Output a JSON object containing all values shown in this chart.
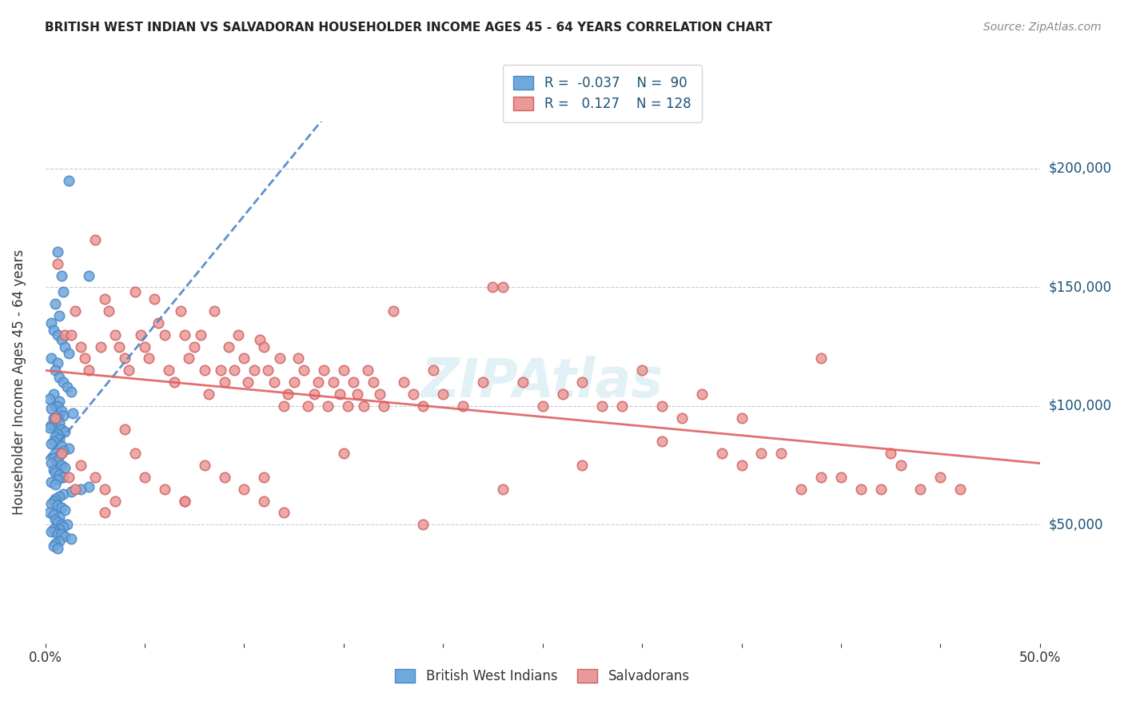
{
  "title": "BRITISH WEST INDIAN VS SALVADORAN HOUSEHOLDER INCOME AGES 45 - 64 YEARS CORRELATION CHART",
  "source": "Source: ZipAtlas.com",
  "xlabel_bottom": "",
  "ylabel": "Householder Income Ages 45 - 64 years",
  "xlim": [
    0.0,
    0.5
  ],
  "ylim": [
    0,
    220000
  ],
  "xticks": [
    0.0,
    0.05,
    0.1,
    0.15,
    0.2,
    0.25,
    0.3,
    0.35,
    0.4,
    0.45,
    0.5
  ],
  "xticklabels": [
    "0.0%",
    "",
    "",
    "",
    "",
    "",
    "",
    "",
    "",
    "",
    "50.0%"
  ],
  "ytick_positions": [
    50000,
    100000,
    150000,
    200000
  ],
  "ytick_labels": [
    "$50,000",
    "$100,000",
    "$150,000",
    "$200,000"
  ],
  "legend_labels": [
    "British West Indians",
    "Salvadorans"
  ],
  "legend_R_blue": "R = -0.037",
  "legend_N_blue": "N =  90",
  "legend_R_pink": "R =  0.127",
  "legend_N_pink": "N = 128",
  "color_blue": "#6fa8dc",
  "color_pink": "#ea9999",
  "color_blue_line": "#4a86c8",
  "color_pink_line": "#e06060",
  "watermark": "ZIPAtlas",
  "blue_R": -0.037,
  "blue_N": 90,
  "pink_R": 0.127,
  "pink_N": 128,
  "blue_x": [
    0.006,
    0.012,
    0.022,
    0.008,
    0.009,
    0.005,
    0.007,
    0.003,
    0.004,
    0.006,
    0.008,
    0.01,
    0.012,
    0.003,
    0.006,
    0.005,
    0.007,
    0.009,
    0.011,
    0.013,
    0.004,
    0.002,
    0.007,
    0.005,
    0.006,
    0.003,
    0.008,
    0.014,
    0.009,
    0.006,
    0.004,
    0.005,
    0.007,
    0.003,
    0.002,
    0.008,
    0.01,
    0.006,
    0.005,
    0.007,
    0.004,
    0.003,
    0.008,
    0.012,
    0.009,
    0.005,
    0.007,
    0.004,
    0.006,
    0.003,
    0.008,
    0.01,
    0.004,
    0.005,
    0.007,
    0.009,
    0.006,
    0.003,
    0.005,
    0.022,
    0.018,
    0.013,
    0.009,
    0.007,
    0.005,
    0.004,
    0.003,
    0.006,
    0.008,
    0.01,
    0.002,
    0.004,
    0.007,
    0.005,
    0.006,
    0.008,
    0.011,
    0.009,
    0.007,
    0.004,
    0.005,
    0.003,
    0.006,
    0.008,
    0.01,
    0.013,
    0.007,
    0.005,
    0.004,
    0.006
  ],
  "blue_y": [
    165000,
    195000,
    155000,
    155000,
    148000,
    143000,
    138000,
    135000,
    132000,
    130000,
    128000,
    125000,
    122000,
    120000,
    118000,
    115000,
    112000,
    110000,
    108000,
    106000,
    105000,
    103000,
    102000,
    100000,
    100000,
    99000,
    98000,
    97000,
    96000,
    95000,
    95000,
    94000,
    93000,
    92000,
    91000,
    90000,
    89000,
    88000,
    87000,
    86000,
    85000,
    84000,
    83000,
    82000,
    81000,
    80000,
    79000,
    78000,
    77000,
    76000,
    75000,
    74000,
    73000,
    72000,
    71000,
    70000,
    69000,
    68000,
    67000,
    66000,
    65000,
    64000,
    63000,
    62000,
    61000,
    60000,
    59000,
    58000,
    57000,
    56000,
    55000,
    54000,
    53000,
    52000,
    51000,
    50000,
    50000,
    49000,
    48000,
    48000,
    47000,
    47000,
    46000,
    46000,
    45000,
    44000,
    43000,
    42000,
    41000,
    40000
  ],
  "pink_x": [
    0.006,
    0.01,
    0.013,
    0.015,
    0.018,
    0.02,
    0.022,
    0.025,
    0.028,
    0.03,
    0.032,
    0.035,
    0.037,
    0.04,
    0.042,
    0.045,
    0.048,
    0.05,
    0.052,
    0.055,
    0.057,
    0.06,
    0.062,
    0.065,
    0.068,
    0.07,
    0.072,
    0.075,
    0.078,
    0.08,
    0.082,
    0.085,
    0.088,
    0.09,
    0.092,
    0.095,
    0.097,
    0.1,
    0.102,
    0.105,
    0.108,
    0.11,
    0.112,
    0.115,
    0.118,
    0.12,
    0.122,
    0.125,
    0.127,
    0.13,
    0.132,
    0.135,
    0.137,
    0.14,
    0.142,
    0.145,
    0.148,
    0.15,
    0.152,
    0.155,
    0.157,
    0.16,
    0.162,
    0.165,
    0.168,
    0.17,
    0.175,
    0.18,
    0.185,
    0.19,
    0.195,
    0.2,
    0.21,
    0.22,
    0.225,
    0.23,
    0.24,
    0.25,
    0.26,
    0.27,
    0.28,
    0.29,
    0.3,
    0.31,
    0.32,
    0.33,
    0.34,
    0.35,
    0.36,
    0.37,
    0.38,
    0.39,
    0.4,
    0.41,
    0.42,
    0.425,
    0.43,
    0.44,
    0.45,
    0.46,
    0.39,
    0.35,
    0.31,
    0.27,
    0.23,
    0.19,
    0.15,
    0.11,
    0.07,
    0.03,
    0.005,
    0.008,
    0.012,
    0.015,
    0.018,
    0.025,
    0.03,
    0.035,
    0.04,
    0.045,
    0.05,
    0.06,
    0.07,
    0.08,
    0.09,
    0.1,
    0.11,
    0.12
  ],
  "pink_y": [
    160000,
    130000,
    130000,
    140000,
    125000,
    120000,
    115000,
    170000,
    125000,
    145000,
    140000,
    130000,
    125000,
    120000,
    115000,
    148000,
    130000,
    125000,
    120000,
    145000,
    135000,
    130000,
    115000,
    110000,
    140000,
    130000,
    120000,
    125000,
    130000,
    115000,
    105000,
    140000,
    115000,
    110000,
    125000,
    115000,
    130000,
    120000,
    110000,
    115000,
    128000,
    125000,
    115000,
    110000,
    120000,
    100000,
    105000,
    110000,
    120000,
    115000,
    100000,
    105000,
    110000,
    115000,
    100000,
    110000,
    105000,
    115000,
    100000,
    110000,
    105000,
    100000,
    115000,
    110000,
    105000,
    100000,
    140000,
    110000,
    105000,
    100000,
    115000,
    105000,
    100000,
    110000,
    150000,
    150000,
    110000,
    100000,
    105000,
    110000,
    100000,
    100000,
    115000,
    100000,
    95000,
    105000,
    80000,
    75000,
    80000,
    80000,
    65000,
    70000,
    70000,
    65000,
    65000,
    80000,
    75000,
    65000,
    70000,
    65000,
    120000,
    95000,
    85000,
    75000,
    65000,
    50000,
    80000,
    70000,
    60000,
    55000,
    95000,
    80000,
    70000,
    65000,
    75000,
    70000,
    65000,
    60000,
    90000,
    80000,
    70000,
    65000,
    60000,
    75000,
    70000,
    65000,
    60000,
    55000
  ]
}
